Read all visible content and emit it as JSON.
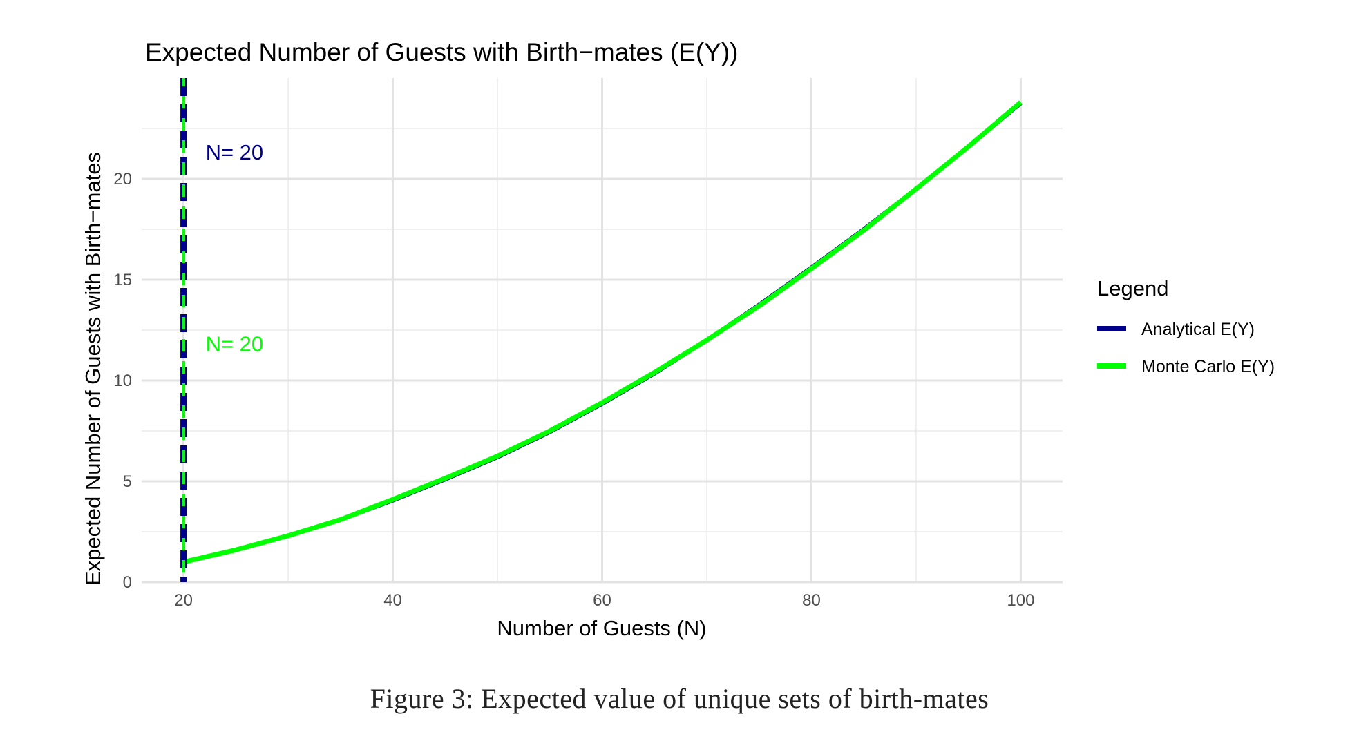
{
  "figure": {
    "caption": "Figure 3: Expected value of unique sets of birth-mates"
  },
  "chart_data": {
    "type": "line",
    "title": "Expected Number of Guests with Birth−mates (E(Y))",
    "xlabel": "Number of Guests (N)",
    "ylabel": "Expected Number of Guests with Birth−mates",
    "xlim": [
      16,
      104
    ],
    "ylim": [
      0,
      25
    ],
    "x_ticks": [
      20,
      40,
      60,
      80,
      100
    ],
    "x_tick_labels": [
      "20",
      "40",
      "60",
      "80",
      "100"
    ],
    "y_ticks": [
      0,
      5,
      10,
      15,
      20
    ],
    "y_tick_labels": [
      "0",
      "5",
      "10",
      "15",
      "20"
    ],
    "grid": true,
    "legend": {
      "title": "Legend",
      "position": "right",
      "entries": [
        {
          "label": "Analytical E(Y)",
          "color": "#00008b"
        },
        {
          "label": "Monte Carlo E(Y)",
          "color": "#00ff00"
        }
      ]
    },
    "series": [
      {
        "name": "Analytical E(Y)",
        "color": "#00008b",
        "x": [
          20,
          25,
          30,
          35,
          40,
          45,
          50,
          55,
          60,
          65,
          70,
          75,
          80,
          85,
          90,
          95,
          100
        ],
        "y": [
          1.0,
          1.6,
          2.3,
          3.1,
          4.05,
          5.1,
          6.2,
          7.45,
          8.85,
          10.35,
          12.0,
          13.75,
          15.6,
          17.5,
          19.5,
          21.6,
          23.75
        ]
      },
      {
        "name": "Monte Carlo E(Y)",
        "color": "#00ff00",
        "x": [
          20,
          25,
          30,
          35,
          40,
          45,
          50,
          55,
          60,
          65,
          70,
          75,
          80,
          85,
          90,
          95,
          100
        ],
        "y": [
          1.0,
          1.6,
          2.3,
          3.1,
          4.1,
          5.15,
          6.25,
          7.5,
          8.9,
          10.4,
          12.0,
          13.7,
          15.55,
          17.45,
          19.5,
          21.6,
          23.8
        ]
      }
    ],
    "vlines": [
      {
        "x": 20,
        "color": "#00008b",
        "label": "N= 20",
        "label_y": 21.3
      },
      {
        "x": 20,
        "color": "#00ff00",
        "label": "N= 20",
        "label_y": 11.8
      }
    ]
  }
}
